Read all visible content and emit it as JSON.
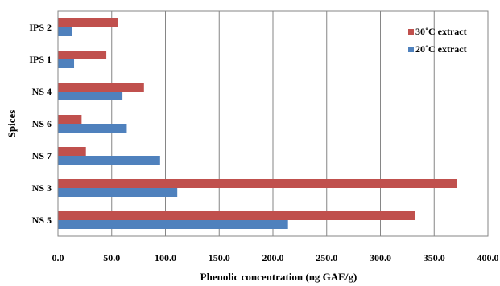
{
  "chart_data": {
    "type": "bar",
    "orientation": "horizontal",
    "categories": [
      "IPS 2",
      "IPS 1",
      "NS 4",
      "NS 6",
      "NS 7",
      "NS 3",
      "NS 5"
    ],
    "series": [
      {
        "name": "30˚C extract",
        "color": "#c0504d",
        "values": [
          56,
          45,
          80,
          22,
          26,
          371,
          332
        ]
      },
      {
        "name": "20˚C extract",
        "color": "#4f81bd",
        "values": [
          13,
          15,
          60,
          64,
          95,
          111,
          214
        ]
      }
    ],
    "xlabel": "Phenolic concentration (ng GAE/g)",
    "ylabel": "Spices",
    "xlim": [
      0,
      400
    ],
    "xticks": [
      "0.0",
      "50.0",
      "100.0",
      "150.0",
      "200.0",
      "250.0",
      "300.0",
      "350.0",
      "400.0"
    ],
    "grid": "vertical",
    "legend_position": "top-right"
  }
}
